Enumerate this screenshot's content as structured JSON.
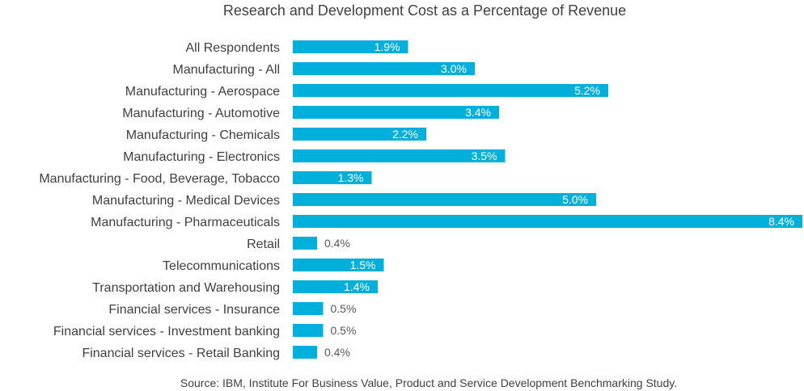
{
  "chart_data": {
    "type": "bar",
    "orientation": "horizontal",
    "title": "Research and Development Cost as a Percentage of Revenue",
    "source": "Source: IBM, Institute For Business Value, Product and Service Development Benchmarking Study.",
    "bar_color": "#00B0DA",
    "categories": [
      "All Respondents",
      "Manufacturing - All",
      "Manufacturing - Aerospace",
      "Manufacturing - Automotive",
      "Manufacturing - Chemicals",
      "Manufacturing - Electronics",
      "Manufacturing - Food, Beverage, Tobacco",
      "Manufacturing - Medical Devices",
      "Manufacturing - Pharmaceuticals",
      "Retail",
      "Telecommunications",
      "Transportation and Warehousing",
      "Financial services - Insurance",
      "Financial services - Investment banking",
      "Financial services - Retail Banking"
    ],
    "values": [
      1.9,
      3.0,
      5.2,
      3.4,
      2.2,
      3.5,
      1.3,
      5.0,
      8.4,
      0.4,
      1.5,
      1.4,
      0.5,
      0.5,
      0.4
    ],
    "labels": [
      "1.9%",
      "3.0%",
      "5.2%",
      "3.4%",
      "2.2%",
      "3.5%",
      "1.3%",
      "5.0%",
      "8.4%",
      "0.4%",
      "1.5%",
      "1.4%",
      "0.5%",
      "0.5%",
      "0.4%"
    ],
    "xlim": [
      0,
      8.4
    ],
    "grid": false,
    "legend": "none"
  }
}
